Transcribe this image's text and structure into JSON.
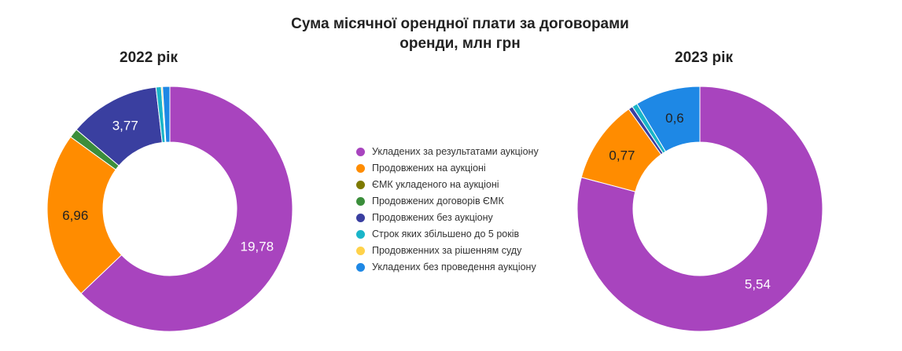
{
  "title": "Сума місячної орендної плати за договорами\nоренди, млн грн",
  "legend": [
    {
      "label": "Укладених за результатами аукціону",
      "color": "#a844be"
    },
    {
      "label": "Продовжених на аукціоні",
      "color": "#ff8c00"
    },
    {
      "label": "ЄМК укладеного на аукціоні",
      "color": "#7e7a00"
    },
    {
      "label": "Продовжених договорів ЄМК",
      "color": "#3b8e3b"
    },
    {
      "label": "Продовжених без аукціону",
      "color": "#3a3fa0"
    },
    {
      "label": "Строк яких збільшено до 5 років",
      "color": "#1ab5c9"
    },
    {
      "label": "Продовженних за рішенням суду",
      "color": "#ffd24a"
    },
    {
      "label": "Укладених без проведення аукціону",
      "color": "#1e88e5"
    }
  ],
  "chart_data": [
    {
      "type": "pie",
      "title": "2022 рік",
      "categories": [
        "Укладених за результатами аукціону",
        "Продовжених на аукціоні",
        "ЄМК укладеного на аукціоні",
        "Продовжених договорів ЄМК",
        "Продовжених без аукціону",
        "Строк яких збільшено до 5 років",
        "Продовженних за рішенням суду",
        "Укладених без проведення аукціону"
      ],
      "values": [
        19.78,
        6.96,
        0.0,
        0.38,
        3.77,
        0.22,
        0.05,
        0.3
      ],
      "labels": [
        "19,78",
        "6,96",
        "",
        "",
        "3,77",
        "",
        "",
        ""
      ],
      "label_colors": [
        "#ffffff",
        "#222222",
        "",
        "",
        "#ffffff",
        "",
        "",
        ""
      ]
    },
    {
      "type": "pie",
      "title": "2023 рік",
      "categories": [
        "Укладених за результатами аукціону",
        "Продовжених на аукціоні",
        "ЄМК укладеного на аукціоні",
        "Продовжених договорів ЄМК",
        "Продовжених без аукціону",
        "Строк яких збільшено до 5 років",
        "Продовженних за рішенням суду",
        "Укладених без проведення аукціону"
      ],
      "values": [
        5.54,
        0.77,
        0.0,
        0.0,
        0.04,
        0.05,
        0.0,
        0.6
      ],
      "labels": [
        "5,54",
        "0,77",
        "",
        "",
        "",
        "",
        "",
        "0,6"
      ],
      "label_colors": [
        "#ffffff",
        "#222222",
        "",
        "",
        "",
        "",
        "",
        "#222222"
      ]
    }
  ]
}
